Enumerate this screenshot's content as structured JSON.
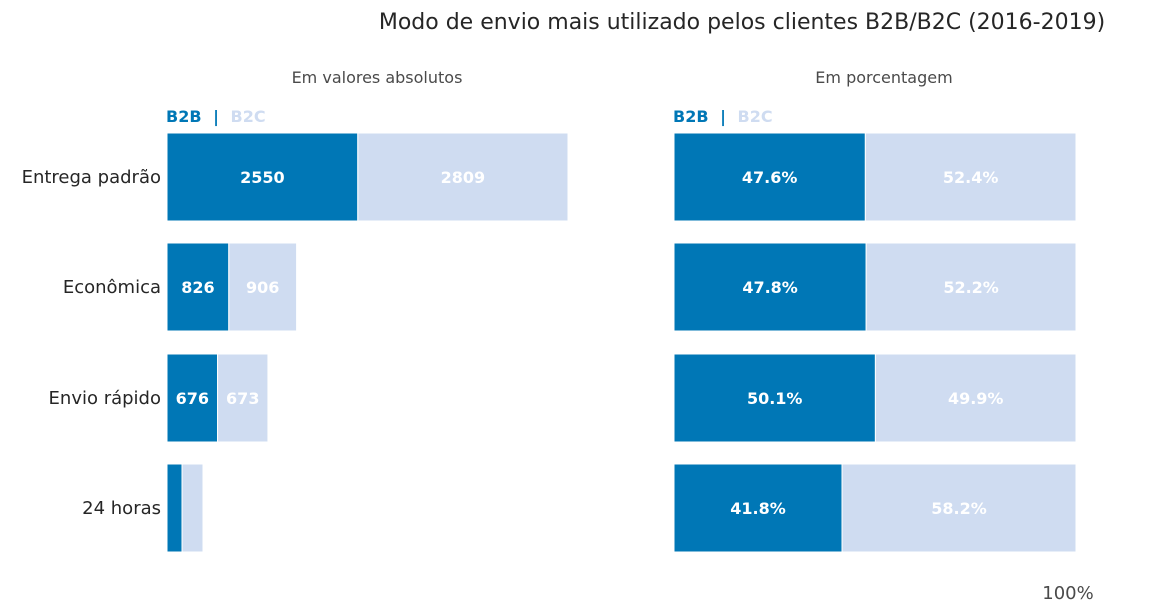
{
  "title": "Modo de envio mais utilizado pelos clientes B2B/B2C (2016-2019)",
  "legend": {
    "b2b": "B2B",
    "separator": "|",
    "b2c": "B2C"
  },
  "colors": {
    "b2b": "#0077b6",
    "b2c": "#cfdcf1",
    "text_white": "#ffffff"
  },
  "footer": "100%",
  "chart_data": [
    {
      "type": "bar",
      "orientation": "horizontal",
      "stacked": true,
      "subtitle": "Em valores absolutos",
      "categories": [
        "Entrega padrão",
        "Econômica",
        "Envio rápido",
        "24 horas"
      ],
      "series": [
        {
          "name": "B2B",
          "values": [
            2550,
            826,
            676,
            201
          ]
        },
        {
          "name": "B2C",
          "values": [
            2809,
            906,
            673,
            280
          ]
        }
      ],
      "data_labels": [
        {
          "category": "Entrega padrão",
          "B2B": "2550",
          "B2C": "2809"
        },
        {
          "category": "Econômica",
          "B2B": "826",
          "B2C": "906"
        },
        {
          "category": "Envio rápido",
          "B2B": "676",
          "B2C": "673"
        },
        {
          "category": "24 horas",
          "B2B": "",
          "B2C": ""
        }
      ],
      "xlim": [
        0,
        5359
      ],
      "grid": false,
      "legend_position": "top-left"
    },
    {
      "type": "bar",
      "orientation": "horizontal",
      "stacked": true,
      "subtitle": "Em porcentagem",
      "categories": [
        "Entrega padrão",
        "Econômica",
        "Envio rápido",
        "24 horas"
      ],
      "series": [
        {
          "name": "B2B",
          "values": [
            47.6,
            47.8,
            50.1,
            41.8
          ]
        },
        {
          "name": "B2C",
          "values": [
            52.4,
            52.2,
            49.9,
            58.2
          ]
        }
      ],
      "value_format": "percent",
      "xlim": [
        0,
        100
      ],
      "grid": false,
      "legend_position": "top-left"
    }
  ]
}
